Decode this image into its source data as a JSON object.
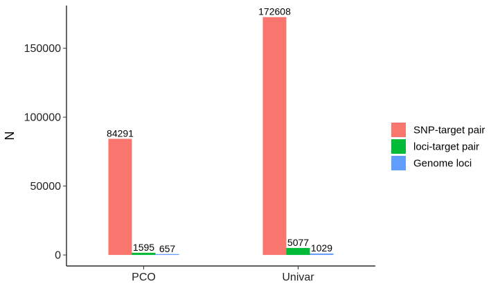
{
  "chart_data": {
    "type": "bar",
    "title": "",
    "xlabel": "",
    "ylabel": "N",
    "categories": [
      "PCO",
      "Univar"
    ],
    "series": [
      {
        "name": "SNP-target pair",
        "color": "#F8766D",
        "values": [
          84291,
          172608
        ],
        "labels": [
          "84291",
          "172608"
        ]
      },
      {
        "name": "loci-target pair",
        "color": "#00BA38",
        "values": [
          1595,
          5077
        ],
        "labels": [
          "1595",
          "5077"
        ]
      },
      {
        "name": "Genome loci",
        "color": "#619CFF",
        "values": [
          657,
          1029
        ],
        "labels": [
          "657",
          "1029"
        ]
      }
    ],
    "ylim": [
      -8000,
      181000
    ],
    "yticks": [
      0,
      50000,
      100000,
      150000
    ],
    "ytick_labels": [
      "0",
      "50000",
      "100000",
      "150000"
    ],
    "grid": false,
    "legend": "right"
  }
}
